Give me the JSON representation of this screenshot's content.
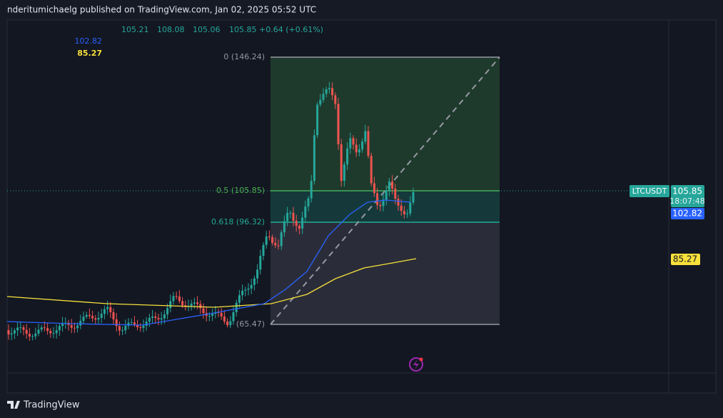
{
  "header": {
    "text": "nderitumichaelg published on TradingView.com, Jan 02, 2025 05:52 UTC"
  },
  "legend": {
    "open": "105.21",
    "high": "108.08",
    "low": "105.06",
    "close": "105.85",
    "change": "+0.64 (+0.61%)",
    "indicators": [
      "102.82",
      "85.27"
    ]
  },
  "fib": {
    "levels": [
      "0 (146.24)",
      "0.5 (105.85)",
      "0.618 (96.32)",
      "(65.47)"
    ]
  },
  "price_axis": {
    "symbol": "LTCUSDT",
    "price": "105.85",
    "countdown": "18:07:48",
    "ma_fast": "102.82",
    "ma_slow": "85.27"
  },
  "footer": {
    "logo": "TradingView"
  }
}
